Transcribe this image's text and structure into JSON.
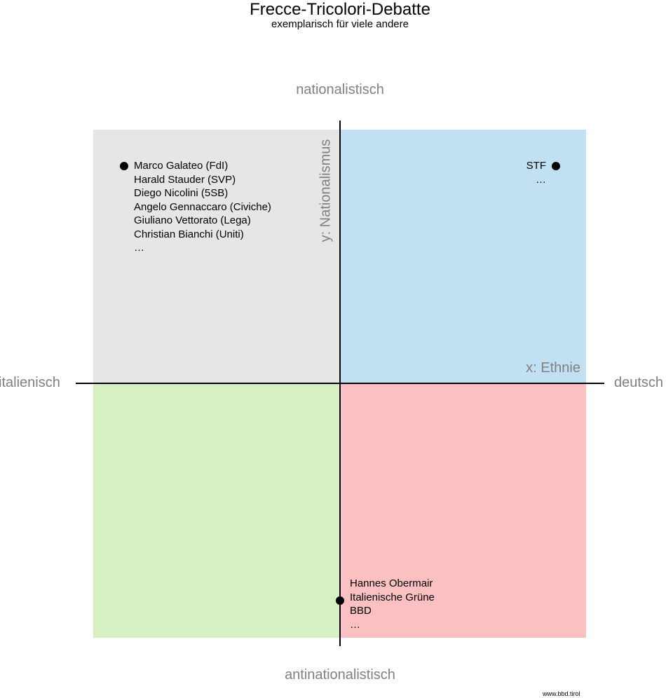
{
  "title": "Frecce-Tricolori-Debatte",
  "subtitle": "exemplarisch für viele andere",
  "axes": {
    "top": "nationalistisch",
    "bottom": "antinationalistisch",
    "left": "italienisch",
    "right": "deutsch",
    "x_name": "x: Ethnie",
    "y_name": "y: Nationalismus"
  },
  "colors": {
    "top_left": "#e6e6e6",
    "top_right": "#c1e0f2",
    "bottom_left": "#d6f0c1",
    "bottom_right": "#fbc0c1"
  },
  "groups": {
    "top_left": [
      "Marco Galateo (FdI)",
      "Harald Stauder (SVP)",
      "Diego Nicolini (5SB)",
      "Angelo Gennaccaro (Civiche)",
      "Giuliano Vettorato (Lega)",
      "Christian Bianchi (Uniti)",
      "…"
    ],
    "top_right": [
      "STF",
      "…"
    ],
    "bottom_center": [
      "Hannes Obermair",
      "Italienische Grüne",
      "BBD",
      "…"
    ]
  },
  "footer": "www.bbd.tirol"
}
